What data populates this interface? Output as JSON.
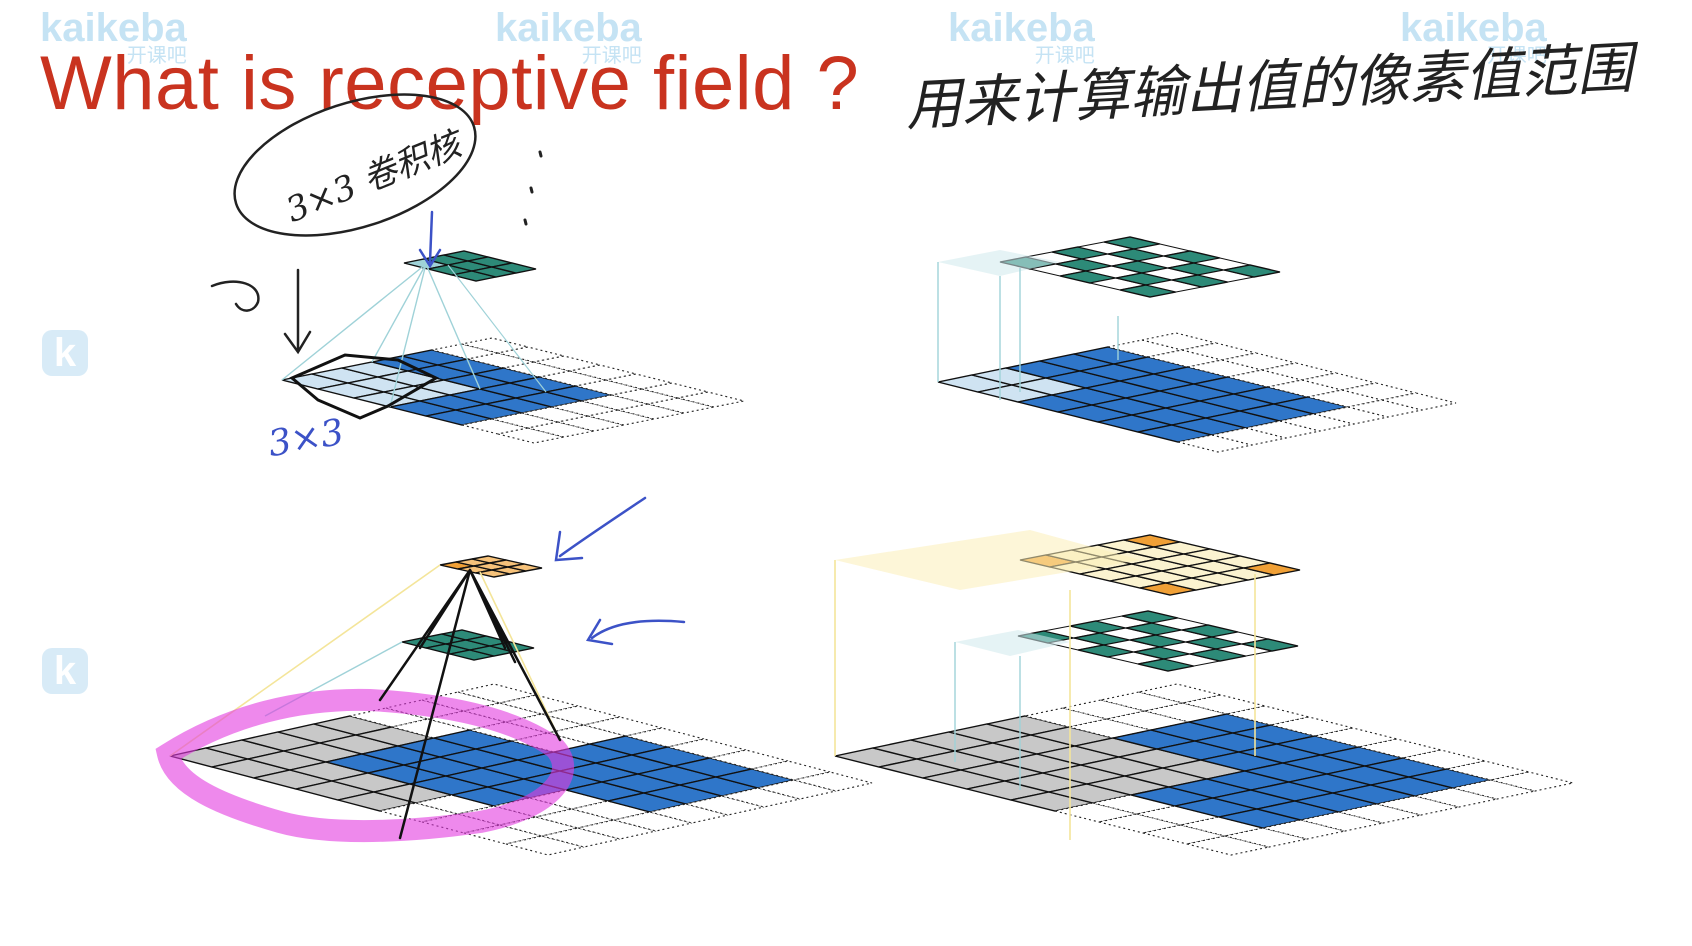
{
  "title": "What is receptive field ?",
  "annotations": {
    "main_note": "用来计算输出值的像素值范围",
    "kernel_note": "3×3 卷积核",
    "size_note": "3×3"
  },
  "watermark": {
    "brand": "kaikeba",
    "brand_cn": "开课吧"
  },
  "colors": {
    "title": "#c9331f",
    "input_blue": "#2f76c9",
    "teal": "#2d8a78",
    "orange": "#f0a036",
    "receptive_gray": "#c8c8c8",
    "highlight_magenta": "#e23be0",
    "pen_blue": "#3c52c7",
    "teal_frame": "#9fd2d8",
    "yellow_frame": "#f4e59a"
  },
  "panels": [
    {
      "id": "top-left",
      "layers": [
        "input",
        "conv1-output"
      ]
    },
    {
      "id": "top-right",
      "layers": [
        "input",
        "conv1-output"
      ]
    },
    {
      "id": "bottom-left",
      "layers": [
        "input",
        "conv1-output",
        "conv2-output"
      ]
    },
    {
      "id": "bottom-right",
      "layers": [
        "input",
        "conv1-output",
        "conv2-output"
      ]
    }
  ]
}
